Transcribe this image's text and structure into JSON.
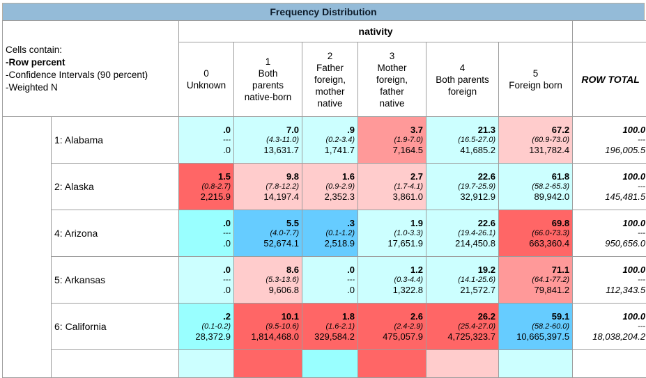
{
  "title": "Frequency Distribution",
  "legend": {
    "line1": "Cells contain:",
    "line2": "-Row percent",
    "line3": "-Confidence Intervals (90 percent)",
    "line4": "-Weighted N"
  },
  "column_group": "nativity",
  "row_total_label": "ROW TOTAL",
  "columns": [
    {
      "code": "0",
      "label": "Unknown"
    },
    {
      "code": "1",
      "label": "Both\nparents\nnative-born"
    },
    {
      "code": "2",
      "label": "Father\nforeign,\nmother\nnative"
    },
    {
      "code": "3",
      "label": "Mother\nforeign,\nfather\nnative"
    },
    {
      "code": "4",
      "label": "Both parents\nforeign"
    },
    {
      "code": "5",
      "label": "Foreign born"
    }
  ],
  "colors": {
    "title_bg": "#94BBD8",
    "pale_cyan": "#CCFFFF",
    "bright_cyan": "#99FFFF",
    "medium_blue": "#66CCFF",
    "light_pink": "#FFCCCC",
    "salmon": "#FF9999",
    "red": "#FF6666"
  },
  "rows": [
    {
      "label": "1: Alabama",
      "cells": [
        {
          "pct": ".0",
          "ci": "---",
          "n": ".0",
          "color": "#CCFFFF"
        },
        {
          "pct": "7.0",
          "ci": "(4.3-11.0)",
          "n": "13,631.7",
          "color": "#CCFFFF"
        },
        {
          "pct": ".9",
          "ci": "(0.2-3.4)",
          "n": "1,741.7",
          "color": "#CCFFFF"
        },
        {
          "pct": "3.7",
          "ci": "(1.9-7.0)",
          "n": "7,164.5",
          "color": "#FF9999"
        },
        {
          "pct": "21.3",
          "ci": "(16.5-27.0)",
          "n": "41,685.2",
          "color": "#CCFFFF"
        },
        {
          "pct": "67.2",
          "ci": "(60.9-73.0)",
          "n": "131,782.4",
          "color": "#FFCCCC"
        }
      ],
      "total": {
        "pct": "100.0",
        "ci": "---",
        "n": "196,005.5"
      }
    },
    {
      "label": "2: Alaska",
      "cells": [
        {
          "pct": "1.5",
          "ci": "(0.8-2.7)",
          "n": "2,215.9",
          "color": "#FF6666"
        },
        {
          "pct": "9.8",
          "ci": "(7.8-12.2)",
          "n": "14,197.4",
          "color": "#FFCCCC"
        },
        {
          "pct": "1.6",
          "ci": "(0.9-2.9)",
          "n": "2,352.3",
          "color": "#FFCCCC"
        },
        {
          "pct": "2.7",
          "ci": "(1.7-4.1)",
          "n": "3,861.0",
          "color": "#FFCCCC"
        },
        {
          "pct": "22.6",
          "ci": "(19.7-25.9)",
          "n": "32,912.9",
          "color": "#CCFFFF"
        },
        {
          "pct": "61.8",
          "ci": "(58.2-65.3)",
          "n": "89,942.0",
          "color": "#CCFFFF"
        }
      ],
      "total": {
        "pct": "100.0",
        "ci": "---",
        "n": "145,481.5"
      }
    },
    {
      "label": "4: Arizona",
      "cells": [
        {
          "pct": ".0",
          "ci": "---",
          "n": ".0",
          "color": "#99FFFF"
        },
        {
          "pct": "5.5",
          "ci": "(4.0-7.7)",
          "n": "52,674.1",
          "color": "#66CCFF"
        },
        {
          "pct": ".3",
          "ci": "(0.1-1.2)",
          "n": "2,518.9",
          "color": "#66CCFF"
        },
        {
          "pct": "1.9",
          "ci": "(1.0-3.3)",
          "n": "17,651.9",
          "color": "#CCFFFF"
        },
        {
          "pct": "22.6",
          "ci": "(19.4-26.1)",
          "n": "214,450.8",
          "color": "#CCFFFF"
        },
        {
          "pct": "69.8",
          "ci": "(66.0-73.3)",
          "n": "663,360.4",
          "color": "#FF6666"
        }
      ],
      "total": {
        "pct": "100.0",
        "ci": "---",
        "n": "950,656.0"
      }
    },
    {
      "label": "5: Arkansas",
      "cells": [
        {
          "pct": ".0",
          "ci": "---",
          "n": ".0",
          "color": "#CCFFFF"
        },
        {
          "pct": "8.6",
          "ci": "(5.3-13.6)",
          "n": "9,606.8",
          "color": "#FFCCCC"
        },
        {
          "pct": ".0",
          "ci": "---",
          "n": ".0",
          "color": "#CCFFFF"
        },
        {
          "pct": "1.2",
          "ci": "(0.3-4.4)",
          "n": "1,322.8",
          "color": "#CCFFFF"
        },
        {
          "pct": "19.2",
          "ci": "(14.1-25.6)",
          "n": "21,572.7",
          "color": "#CCFFFF"
        },
        {
          "pct": "71.1",
          "ci": "(64.1-77.2)",
          "n": "79,841.2",
          "color": "#FF9999"
        }
      ],
      "total": {
        "pct": "100.0",
        "ci": "---",
        "n": "112,343.5"
      }
    },
    {
      "label": "6: California",
      "cells": [
        {
          "pct": ".2",
          "ci": "(0.1-0.2)",
          "n": "28,372.9",
          "color": "#99FFFF"
        },
        {
          "pct": "10.1",
          "ci": "(9.5-10.6)",
          "n": "1,814,468.0",
          "color": "#FF6666"
        },
        {
          "pct": "1.8",
          "ci": "(1.6-2.1)",
          "n": "329,584.2",
          "color": "#FF6666"
        },
        {
          "pct": "2.6",
          "ci": "(2.4-2.9)",
          "n": "475,057.9",
          "color": "#FF6666"
        },
        {
          "pct": "26.2",
          "ci": "(25.4-27.0)",
          "n": "4,725,323.7",
          "color": "#FF6666"
        },
        {
          "pct": "59.1",
          "ci": "(58.2-60.0)",
          "n": "10,665,397.5",
          "color": "#66CCFF"
        }
      ],
      "total": {
        "pct": "100.0",
        "ci": "---",
        "n": "18,038,204.2"
      }
    }
  ],
  "partial_row": {
    "colors": [
      "#CCFFFF",
      "#FF6666",
      "#99FFFF",
      "#FF6666",
      "#FFCCCC",
      "#CCFFFF"
    ]
  }
}
